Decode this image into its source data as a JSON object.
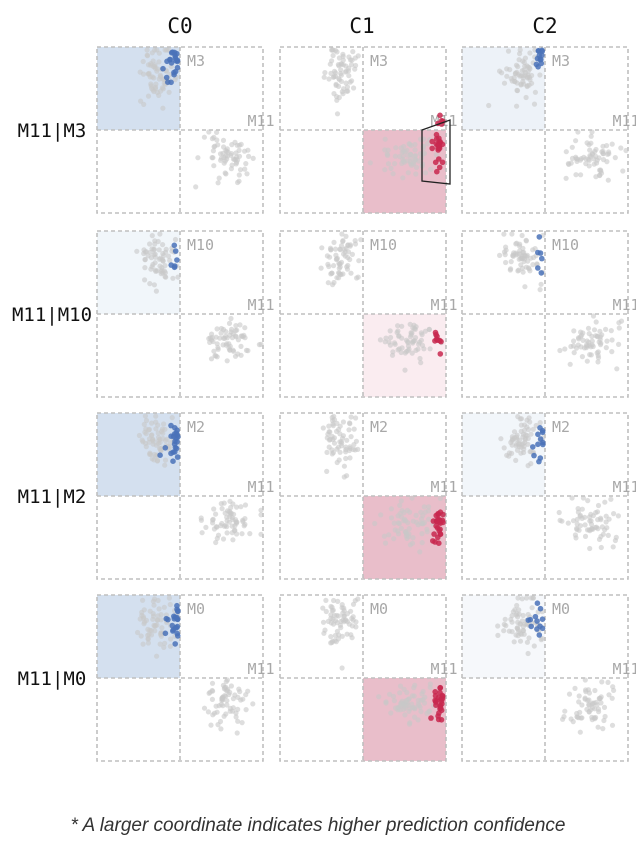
{
  "chart_data": {
    "type": "scatter",
    "columns": [
      "C0",
      "C1",
      "C2"
    ],
    "rows": [
      "M11|M3",
      "M11|M10",
      "M11|M2",
      "M11|M0"
    ],
    "row_models": [
      {
        "top": "M3",
        "bottom": "M11"
      },
      {
        "top": "M10",
        "bottom": "M11"
      },
      {
        "top": "M2",
        "bottom": "M11"
      },
      {
        "top": "M0",
        "bottom": "M11"
      }
    ],
    "regions": [
      {
        "row": 0,
        "col": 0,
        "quadrant": "top-left",
        "color": "#c5d6ea",
        "opacity": 0.75
      },
      {
        "row": 0,
        "col": 1,
        "quadrant": "bottom-right",
        "color": "#e0a3b4",
        "opacity": 0.7
      },
      {
        "row": 0,
        "col": 2,
        "quadrant": "top-left",
        "color": "#dbe6f1",
        "opacity": 0.5
      },
      {
        "row": 1,
        "col": 0,
        "quadrant": "top-left",
        "color": "#e4edf5",
        "opacity": 0.5
      },
      {
        "row": 1,
        "col": 1,
        "quadrant": "bottom-right",
        "color": "#f7dfe6",
        "opacity": 0.6
      },
      {
        "row": 2,
        "col": 0,
        "quadrant": "top-left",
        "color": "#c5d6ea",
        "opacity": 0.75
      },
      {
        "row": 2,
        "col": 1,
        "quadrant": "bottom-right",
        "color": "#e0a3b4",
        "opacity": 0.7
      },
      {
        "row": 2,
        "col": 2,
        "quadrant": "top-left",
        "color": "#e6eef6",
        "opacity": 0.5
      },
      {
        "row": 3,
        "col": 0,
        "quadrant": "top-left",
        "color": "#c5d6ea",
        "opacity": 0.75
      },
      {
        "row": 3,
        "col": 1,
        "quadrant": "bottom-right",
        "color": "#e0a3b4",
        "opacity": 0.7
      },
      {
        "row": 3,
        "col": 2,
        "quadrant": "top-left",
        "color": "#eef2f7",
        "opacity": 0.5
      }
    ],
    "highlight_box": {
      "row": 0,
      "col": 1
    },
    "colors": {
      "blue": "#4a72b8",
      "red": "#c8284f",
      "gray": "#c8c8c8",
      "grid": "#bfbfbf"
    },
    "footnote": "* A larger coordinate indicates higher prediction confidence"
  }
}
